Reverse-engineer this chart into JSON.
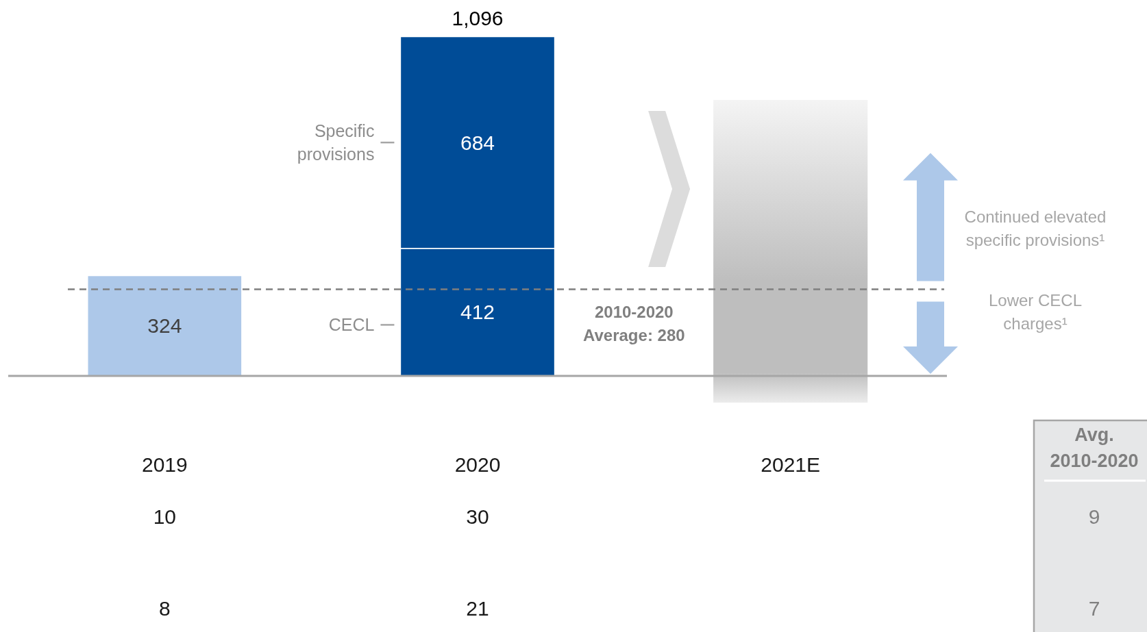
{
  "chart_data": [
    {
      "type": "bar",
      "categories": [
        "2019",
        "2020",
        "2021E"
      ],
      "stacked": true,
      "series": [
        {
          "color": "#adc8e9",
          "values": [
            324,
            null,
            null
          ]
        },
        {
          "name": "CECL",
          "color": "#004c97",
          "values": [
            null,
            412,
            null
          ]
        },
        {
          "name": "Specific provisions",
          "color": "#004c97",
          "values": [
            null,
            684,
            null
          ]
        }
      ],
      "data_labels": true,
      "totals": [
        null,
        "1,096",
        null
      ],
      "ref_lines": [
        {
          "axis": "y",
          "value": 280,
          "label": "2010-2020 Average: 280",
          "color": "#7f7f7f",
          "line_style": "dashed"
        }
      ],
      "annotations": [
        "Continued elevated specific provisions¹",
        "Lower CECL charges¹"
      ]
    },
    {
      "type": "other",
      "annotations": [
        "10",
        "30",
        "8",
        "21"
      ]
    },
    {
      "type": "other",
      "title": "Avg. 2010-2020",
      "annotations": [
        "9",
        "7"
      ]
    }
  ]
}
